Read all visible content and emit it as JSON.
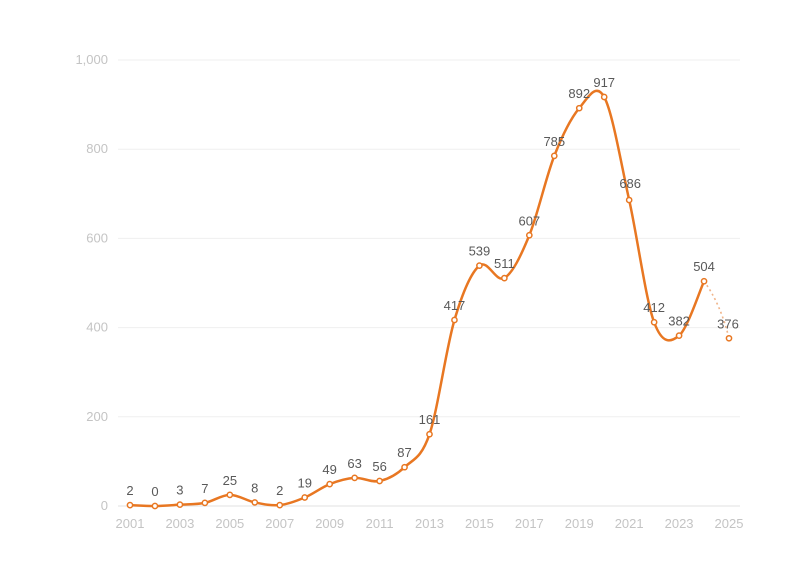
{
  "chart_data": {
    "type": "line",
    "title": "",
    "xlabel": "",
    "ylabel": "",
    "x": [
      2001,
      2002,
      2003,
      2004,
      2005,
      2006,
      2007,
      2008,
      2009,
      2010,
      2011,
      2012,
      2013,
      2014,
      2015,
      2016,
      2017,
      2018,
      2019,
      2020,
      2021,
      2022,
      2023,
      2024,
      2025
    ],
    "values": [
      2,
      0,
      3,
      7,
      25,
      8,
      2,
      19,
      49,
      63,
      56,
      87,
      161,
      417,
      539,
      511,
      607,
      785,
      892,
      917,
      686,
      412,
      382,
      504,
      376
    ],
    "data_labels": [
      "2",
      "0",
      "3",
      "7",
      "25",
      "8",
      "2",
      "19",
      "49",
      "63",
      "56",
      "87",
      "161",
      "417",
      "539",
      "511",
      "607",
      "785",
      "892",
      "917",
      "686",
      "412",
      "382",
      "504",
      "376"
    ],
    "projected_from_index": 23,
    "ylim": [
      0,
      1000
    ],
    "y_ticks": [
      0,
      200,
      400,
      600,
      800,
      1000
    ],
    "y_tick_labels": [
      "0",
      "200",
      "400",
      "600",
      "800",
      "1,000"
    ],
    "x_tick_labels": [
      "2001",
      "2003",
      "2005",
      "2007",
      "2009",
      "2011",
      "2013",
      "2015",
      "2017",
      "2019",
      "2021",
      "2023",
      "2025"
    ],
    "x_tick_values": [
      2001,
      2003,
      2005,
      2007,
      2009,
      2011,
      2013,
      2015,
      2017,
      2019,
      2021,
      2023,
      2025
    ],
    "grid": true,
    "legend": "none",
    "colors": {
      "line": "#e87722",
      "projection": "#f0b489",
      "grid": "#efefef",
      "tick_text": "#c4c4c4",
      "label_text": "#595959"
    }
  }
}
